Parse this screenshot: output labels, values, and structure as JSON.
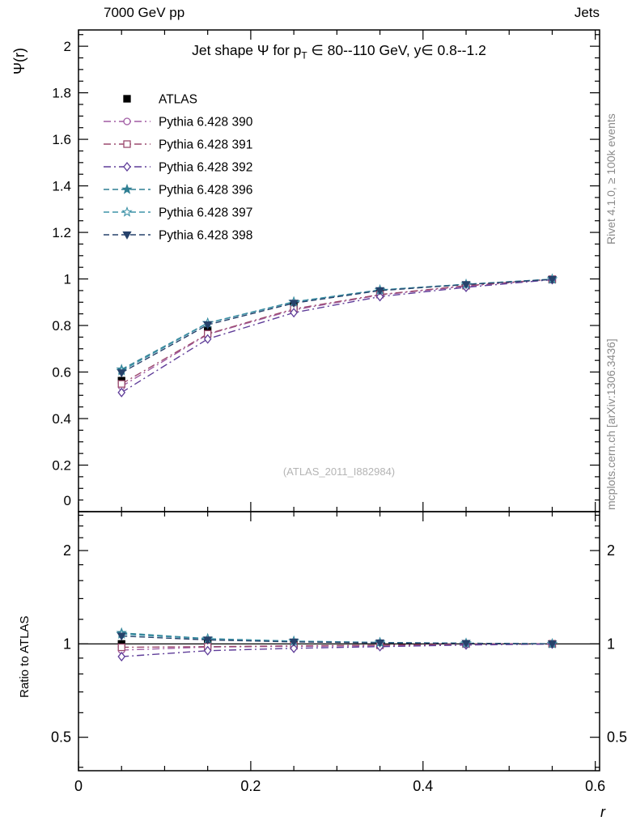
{
  "header": {
    "left": "7000 GeV pp",
    "right": "Jets"
  },
  "side": {
    "top": "Rivet 4.1.0, ≥ 100k events",
    "bottom": "mcplots.cern.ch [arXiv:1306.3436]"
  },
  "chart_data": {
    "type": "line",
    "title_parts": [
      "Jet shape Ψ for p",
      "T",
      " ∈ 80--110 GeV, y∈ 0.8--1.2"
    ],
    "watermark": "(ATLAS_2011_I882984)",
    "xlabel": "r",
    "ylabel": "Ψ(r)",
    "ratio_ylabel": "Ratio to ATLAS",
    "xlim": [
      0,
      0.605
    ],
    "ylim": [
      0,
      2.07
    ],
    "ratio_ylim": [
      0.39,
      2.67
    ],
    "ratio_scale": "log",
    "xticks": [
      0,
      0.2,
      0.4,
      0.6
    ],
    "xminor_step": 0.05,
    "yticks": [
      0,
      0.2,
      0.4,
      0.6,
      0.8,
      1,
      1.2,
      1.4,
      1.6,
      1.8,
      2
    ],
    "yminor_step": 0.05,
    "ratio_ticks": [
      0.5,
      1,
      2
    ],
    "ratio_minor_ticks": [
      0.4,
      0.6,
      0.7,
      0.8,
      0.9,
      1.2,
      1.4,
      1.6,
      1.8,
      2.2,
      2.4,
      2.6
    ],
    "x": [
      0.05,
      0.15,
      0.25,
      0.35,
      0.45,
      0.55
    ],
    "series": [
      {
        "name": "ATLAS",
        "color": "#000000",
        "marker": "square",
        "filled": true,
        "line": "none",
        "values": [
          0.563,
          0.78,
          0.883,
          0.943,
          0.972,
          0.998
        ],
        "ratio": [
          1,
          1,
          1,
          1,
          1,
          1
        ]
      },
      {
        "name": "Pythia 6.428 390",
        "color": "#a05ba3",
        "marker": "circle",
        "filled": false,
        "line": "dashdot",
        "values": [
          0.538,
          0.762,
          0.867,
          0.931,
          0.969,
          0.998
        ],
        "ratio": [
          0.955,
          0.977,
          0.982,
          0.987,
          0.997,
          1.0
        ]
      },
      {
        "name": "Pythia 6.428 391",
        "color": "#9c4a6e",
        "marker": "square",
        "filled": false,
        "line": "dashdot",
        "values": [
          0.549,
          0.764,
          0.871,
          0.933,
          0.971,
          0.999
        ],
        "ratio": [
          0.975,
          0.98,
          0.986,
          0.99,
          0.999,
          1.001
        ]
      },
      {
        "name": "Pythia 6.428 392",
        "color": "#5f3d99",
        "marker": "diamond",
        "filled": false,
        "line": "dashdot",
        "values": [
          0.512,
          0.742,
          0.855,
          0.924,
          0.964,
          0.997
        ],
        "ratio": [
          0.91,
          0.951,
          0.968,
          0.98,
          0.992,
          0.999
        ]
      },
      {
        "name": "Pythia 6.428 396",
        "color": "#2f7f93",
        "marker": "star",
        "filled": true,
        "line": "dashed",
        "values": [
          0.611,
          0.811,
          0.902,
          0.953,
          0.977,
          0.999
        ],
        "ratio": [
          1.085,
          1.04,
          1.021,
          1.011,
          1.005,
          1.001
        ]
      },
      {
        "name": "Pythia 6.428 397",
        "color": "#3f93a8",
        "marker": "star",
        "filled": false,
        "line": "dashed",
        "values": [
          0.605,
          0.81,
          0.901,
          0.952,
          0.977,
          0.999
        ],
        "ratio": [
          1.075,
          1.038,
          1.02,
          1.01,
          1.005,
          1.001
        ]
      },
      {
        "name": "Pythia 6.428 398",
        "color": "#26426b",
        "marker": "triangle-down",
        "filled": true,
        "line": "dashed",
        "values": [
          0.597,
          0.803,
          0.896,
          0.95,
          0.976,
          0.998
        ],
        "ratio": [
          1.06,
          1.03,
          1.015,
          1.008,
          1.004,
          1.0
        ]
      }
    ]
  }
}
